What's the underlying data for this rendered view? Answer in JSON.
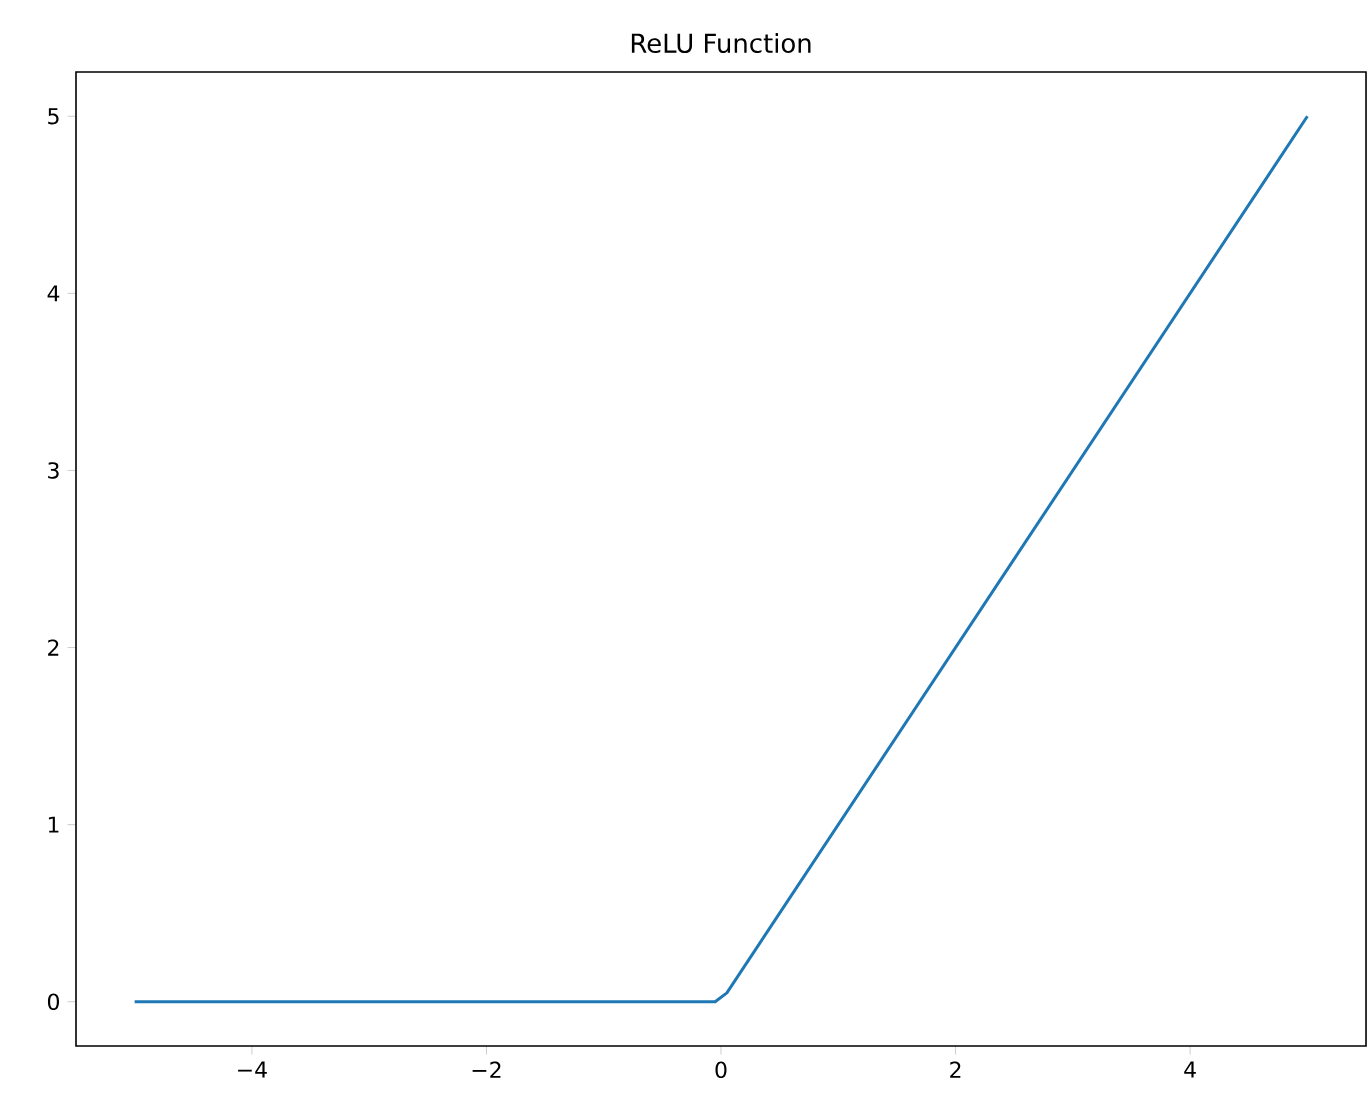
{
  "chart_data": {
    "type": "line",
    "title": "ReLU Function",
    "series": [
      {
        "color": "#1f77b4",
        "x": [
          -5,
          -0.05,
          0.05,
          5
        ],
        "values": [
          0,
          0,
          0.05,
          5
        ]
      }
    ],
    "xlim": [
      -5.5,
      5.5
    ],
    "ylim": [
      -0.25,
      5.25
    ],
    "xticks": [
      {
        "value": -4,
        "label": "−4"
      },
      {
        "value": -2,
        "label": "−2"
      },
      0,
      2,
      4
    ],
    "yticks": [
      0,
      1,
      2,
      3,
      4,
      5
    ],
    "grid": false,
    "marker": "none",
    "line_style": "solid"
  }
}
